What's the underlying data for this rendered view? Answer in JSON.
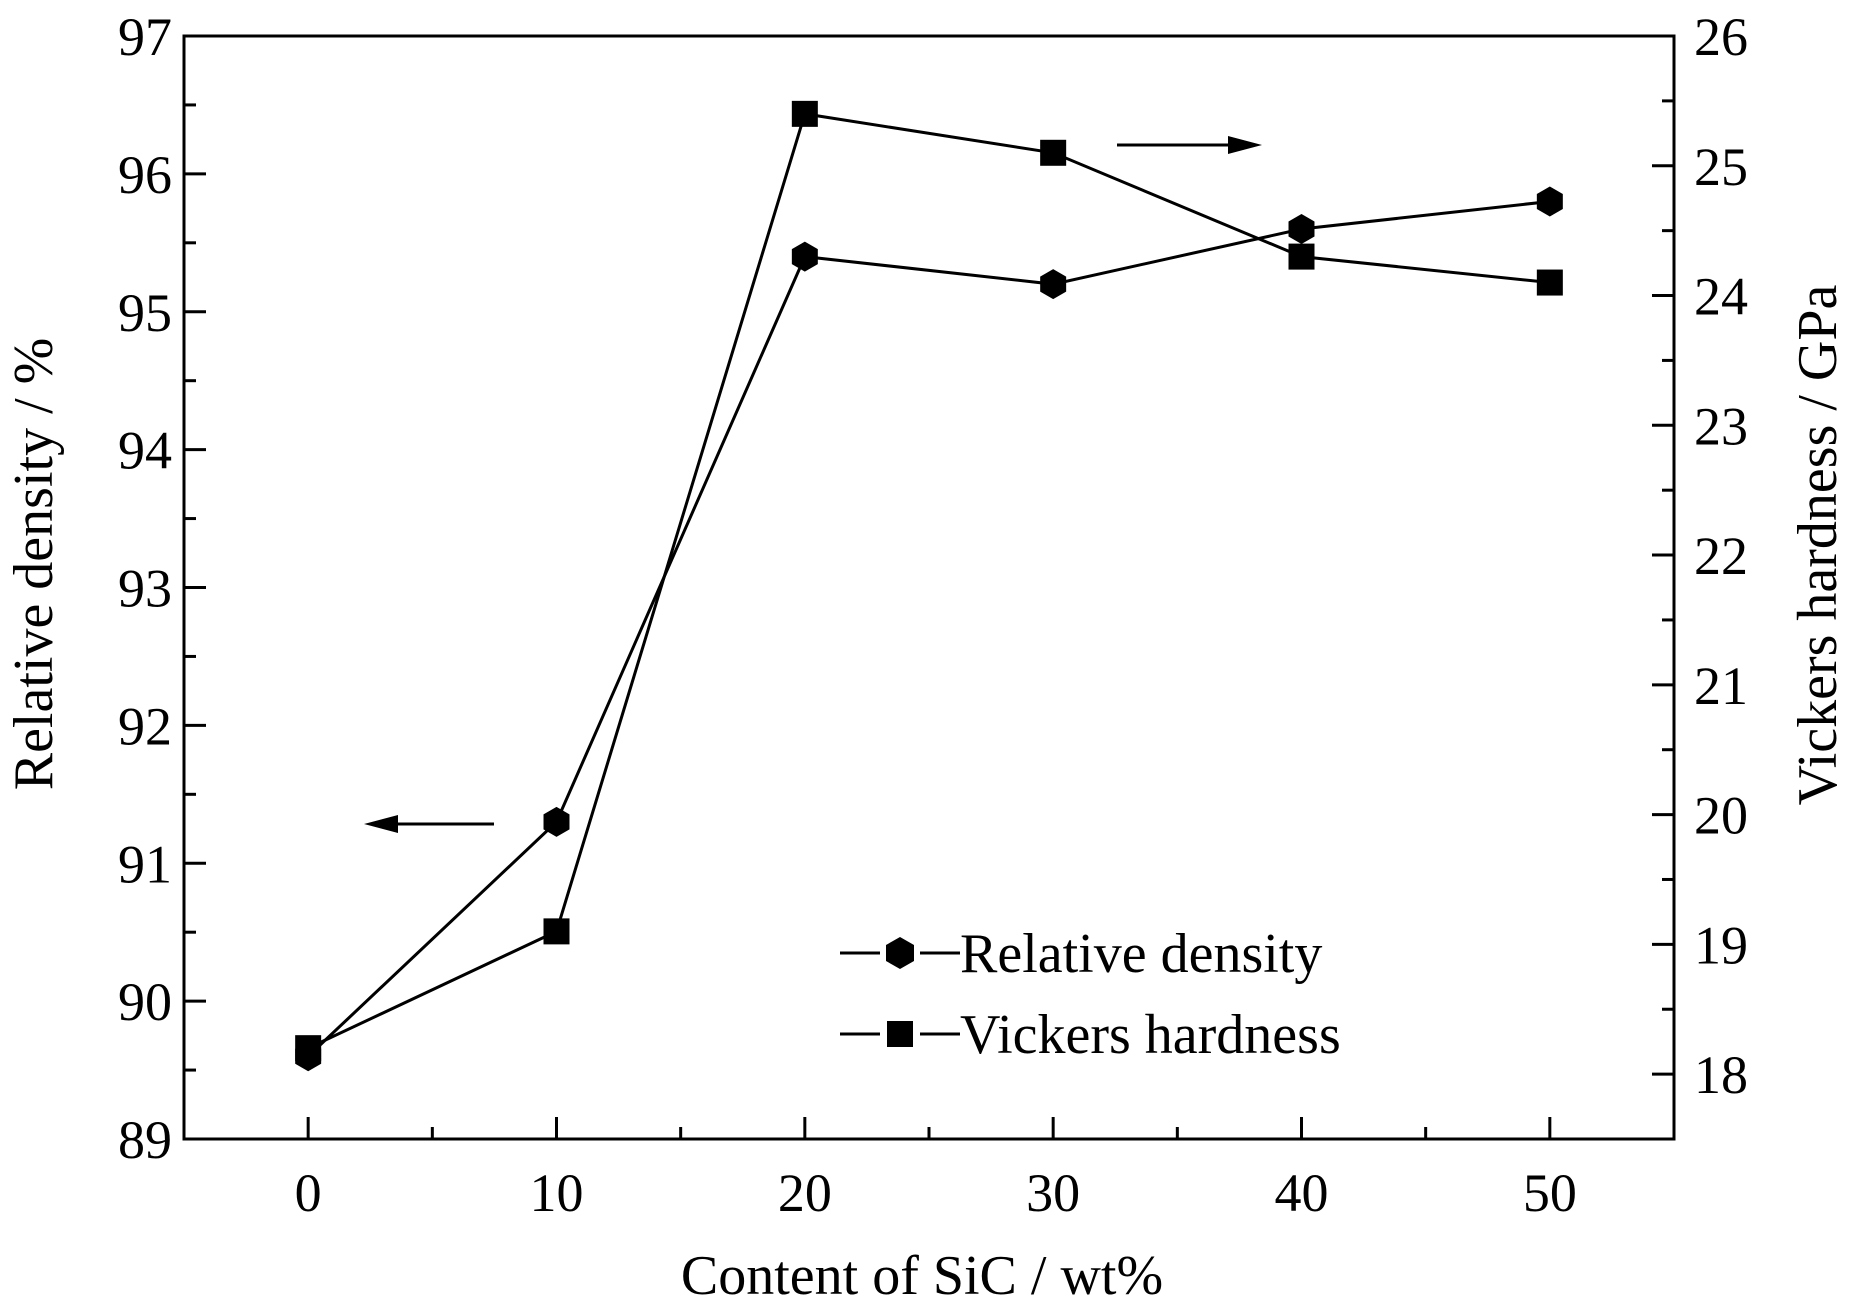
{
  "chart_data": {
    "type": "line",
    "title": "",
    "xlabel": "Content of SiC / wt%",
    "ylabel_left": "Relative density / %",
    "ylabel_right": "Vickers hardness / GPa",
    "xlim": [
      -5,
      55
    ],
    "ylim_left": [
      89,
      97
    ],
    "ylim_right": [
      17.5,
      26
    ],
    "x_ticks": [
      0,
      10,
      20,
      30,
      40,
      50
    ],
    "y_left_ticks": [
      89,
      90,
      91,
      92,
      93,
      94,
      95,
      96,
      97
    ],
    "y_right_ticks": [
      18,
      19,
      20,
      21,
      22,
      23,
      24,
      25,
      26
    ],
    "x": [
      0,
      10,
      20,
      30,
      40,
      50
    ],
    "series": [
      {
        "name": "Relative density",
        "axis": "left",
        "marker": "hexagon",
        "values": [
          89.6,
          91.3,
          95.4,
          95.2,
          95.6,
          95.8
        ]
      },
      {
        "name": "Vickers hardness",
        "axis": "right",
        "marker": "square",
        "values": [
          18.2,
          19.1,
          25.4,
          25.1,
          24.3,
          24.1
        ]
      }
    ],
    "legend_position": "bottom-right",
    "annotations": [
      {
        "kind": "arrow",
        "direction": "left",
        "series": "Relative density"
      },
      {
        "kind": "arrow",
        "direction": "right",
        "series": "Vickers hardness"
      }
    ]
  }
}
